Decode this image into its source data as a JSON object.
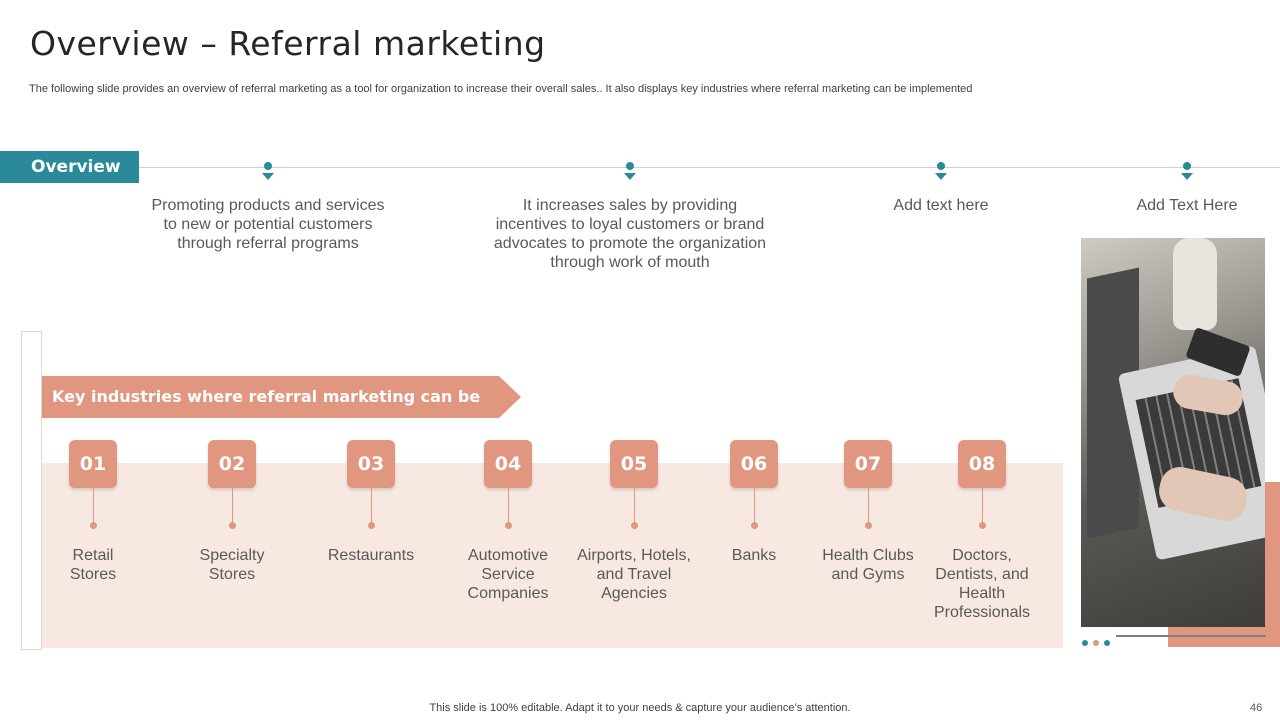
{
  "title": "Overview – Referral marketing",
  "subtitle": "The following slide provides an overview of referral marketing as a tool for organization to increase their overall sales.. It also displays key industries where referral marketing can be implemented",
  "overview": {
    "tag": "Overview",
    "items": [
      "Promoting products and services to new or potential customers through referral programs",
      "It increases sales by providing incentives to loyal customers or brand advocates to promote the organization through work of mouth",
      "Add text here",
      "Add Text Here"
    ]
  },
  "industries": {
    "banner": "Key industries where referral marketing can be used",
    "items": [
      {
        "num": "01",
        "label": "Retail Stores"
      },
      {
        "num": "02",
        "label": "Specialty Stores"
      },
      {
        "num": "03",
        "label": "Restaurants"
      },
      {
        "num": "04",
        "label": "Automotive Service Companies"
      },
      {
        "num": "05",
        "label": "Airports, Hotels, and Travel Agencies"
      },
      {
        "num": "06",
        "label": "Banks"
      },
      {
        "num": "07",
        "label": "Health Clubs and Gyms"
      },
      {
        "num": "08",
        "label": "Doctors, Dentists, and Health Professionals"
      }
    ]
  },
  "footer": "This slide is 100% editable. Adapt it to your needs & capture your audience’s attention.",
  "page_number": "46",
  "colors": {
    "teal": "#2a8a99",
    "salmon": "#e1967f",
    "panel": "#f8e8e2"
  },
  "photo": {
    "description_icon": "laptop-typing-photo"
  }
}
